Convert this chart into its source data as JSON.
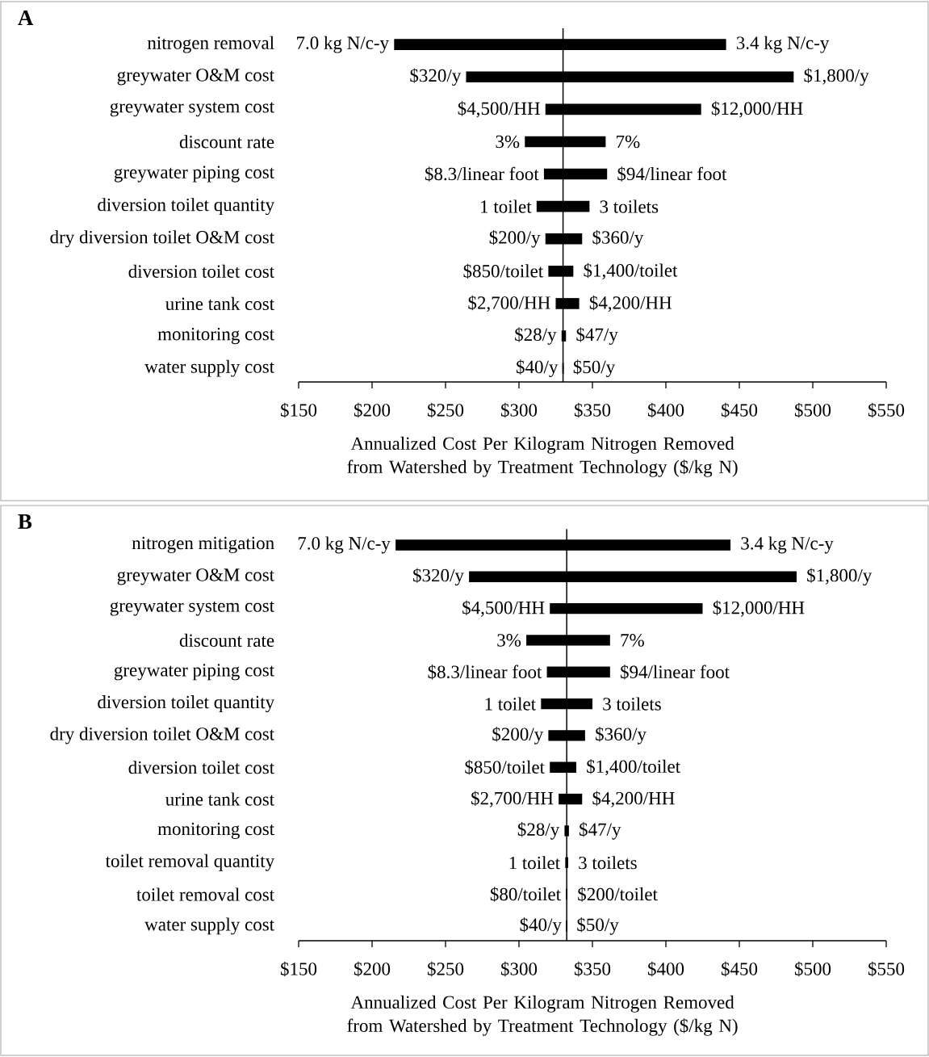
{
  "chart_data": [
    {
      "type": "bar",
      "orientation": "horizontal",
      "title": "A",
      "categories": [
        "nitrogen removal",
        "greywater O&M cost",
        "greywater system cost",
        "discount rate",
        "greywater piping cost",
        "diversion toilet quantity",
        "dry diversion toilet O&M cost",
        "diversion toilet cost",
        "urine tank cost",
        "monitoring cost",
        "water supply cost"
      ],
      "base": [
        215,
        264,
        318,
        304,
        317,
        312,
        318,
        320,
        325,
        329,
        329.5
      ],
      "values": [
        226,
        223,
        106,
        55,
        43,
        36,
        25,
        17,
        16,
        3,
        1
      ],
      "color": "#000000",
      "xlim": [
        150,
        550
      ],
      "xticks": [
        {
          "value": 150,
          "label": "$150"
        },
        {
          "value": 200,
          "label": "$200"
        },
        {
          "value": 250,
          "label": "$250"
        },
        {
          "value": 300,
          "label": "$300"
        },
        {
          "value": 350,
          "label": "$350"
        },
        {
          "value": 400,
          "label": "$400"
        },
        {
          "value": 450,
          "label": "$450"
        },
        {
          "value": 500,
          "label": "$500"
        },
        {
          "value": 550,
          "label": "$550"
        }
      ],
      "xlabel": "Annualized Cost Per Kilogram Nitrogen Removed from Watershed by Treatment Technology ($/kg N)",
      "ref_lines": [
        {
          "axis": "x",
          "value": 330,
          "color": "#000000"
        }
      ],
      "annotations": [
        {
          "text": "7.0 kg N/c-y",
          "x": 215,
          "y": "nitrogen removal"
        },
        {
          "text": "3.4 kg N/c-y",
          "x": 441,
          "y": "nitrogen removal"
        },
        {
          "text": "$320/y",
          "x": 264,
          "y": "greywater O&M cost"
        },
        {
          "text": "$1,800/y",
          "x": 487,
          "y": "greywater O&M cost"
        },
        {
          "text": "$4,500/HH",
          "x": 318,
          "y": "greywater system cost"
        },
        {
          "text": "$12,000/HH",
          "x": 424,
          "y": "greywater system cost"
        },
        {
          "text": "3%",
          "x": 304,
          "y": "discount rate"
        },
        {
          "text": "7%",
          "x": 359,
          "y": "discount rate"
        },
        {
          "text": "$8.3/linear foot",
          "x": 317,
          "y": "greywater piping cost"
        },
        {
          "text": "$94/linear foot",
          "x": 360,
          "y": "greywater piping cost"
        },
        {
          "text": "1 toilet",
          "x": 312,
          "y": "diversion toilet quantity"
        },
        {
          "text": "3 toilets",
          "x": 348,
          "y": "diversion toilet quantity"
        },
        {
          "text": "$200/y",
          "x": 318,
          "y": "dry diversion toilet O&M cost"
        },
        {
          "text": "$360/y",
          "x": 343,
          "y": "dry diversion toilet O&M cost"
        },
        {
          "text": "$850/toilet",
          "x": 320,
          "y": "diversion toilet cost"
        },
        {
          "text": "$1,400/toilet",
          "x": 337,
          "y": "diversion toilet cost"
        },
        {
          "text": "$2,700/HH",
          "x": 325,
          "y": "urine tank cost"
        },
        {
          "text": "$4,200/HH",
          "x": 341,
          "y": "urine tank cost"
        },
        {
          "text": "$28/y",
          "x": 329,
          "y": "monitoring cost"
        },
        {
          "text": "$47/y",
          "x": 332,
          "y": "monitoring cost"
        },
        {
          "text": "$40/y",
          "x": 330,
          "y": "water supply cost"
        },
        {
          "text": "$50/y",
          "x": 330,
          "y": "water supply cost"
        }
      ]
    },
    {
      "type": "bar",
      "orientation": "horizontal",
      "title": "B",
      "categories": [
        "nitrogen mitigation",
        "greywater O&M cost",
        "greywater system cost",
        "discount rate",
        "greywater piping cost",
        "diversion toilet quantity",
        "dry diversion toilet O&M cost",
        "diversion toilet cost",
        "urine tank cost",
        "monitoring cost",
        "toilet removal quantity",
        "toilet removal cost",
        "water supply cost"
      ],
      "base": [
        216,
        266,
        321,
        305,
        319,
        315,
        320,
        321,
        327,
        331,
        331.5,
        332,
        332
      ],
      "values": [
        228,
        223,
        104,
        57,
        43,
        35,
        25,
        18,
        16,
        3,
        2,
        1,
        1
      ],
      "color": "#000000",
      "xlim": [
        150,
        550
      ],
      "xticks": [
        {
          "value": 150,
          "label": "$150"
        },
        {
          "value": 200,
          "label": "$200"
        },
        {
          "value": 250,
          "label": "$250"
        },
        {
          "value": 300,
          "label": "$300"
        },
        {
          "value": 350,
          "label": "$350"
        },
        {
          "value": 400,
          "label": "$400"
        },
        {
          "value": 450,
          "label": "$450"
        },
        {
          "value": 500,
          "label": "$500"
        },
        {
          "value": 550,
          "label": "$550"
        }
      ],
      "xlabel": "Annualized Cost Per Kilogram Nitrogen Removed from Watershed by Treatment Technology ($/kg N)",
      "ref_lines": [
        {
          "axis": "x",
          "value": 332.5,
          "color": "#000000"
        }
      ],
      "annotations": [
        {
          "text": "7.0 kg N/c-y",
          "x": 216,
          "y": "nitrogen mitigation"
        },
        {
          "text": "3.4 kg N/c-y",
          "x": 444,
          "y": "nitrogen mitigation"
        },
        {
          "text": "$320/y",
          "x": 266,
          "y": "greywater O&M cost"
        },
        {
          "text": "$1,800/y",
          "x": 489,
          "y": "greywater O&M cost"
        },
        {
          "text": "$4,500/HH",
          "x": 321,
          "y": "greywater system cost"
        },
        {
          "text": "$12,000/HH",
          "x": 425,
          "y": "greywater system cost"
        },
        {
          "text": "3%",
          "x": 305,
          "y": "discount rate"
        },
        {
          "text": "7%",
          "x": 362,
          "y": "discount rate"
        },
        {
          "text": "$8.3/linear foot",
          "x": 319,
          "y": "greywater piping cost"
        },
        {
          "text": "$94/linear foot",
          "x": 362,
          "y": "greywater piping cost"
        },
        {
          "text": "1 toilet",
          "x": 315,
          "y": "diversion toilet quantity"
        },
        {
          "text": "3 toilets",
          "x": 350,
          "y": "diversion toilet quantity"
        },
        {
          "text": "$200/y",
          "x": 320,
          "y": "dry diversion toilet O&M cost"
        },
        {
          "text": "$360/y",
          "x": 345,
          "y": "dry diversion toilet O&M cost"
        },
        {
          "text": "$850/toilet",
          "x": 321,
          "y": "diversion toilet cost"
        },
        {
          "text": "$1,400/toilet",
          "x": 339,
          "y": "diversion toilet cost"
        },
        {
          "text": "$2,700/HH",
          "x": 327,
          "y": "urine tank cost"
        },
        {
          "text": "$4,200/HH",
          "x": 343,
          "y": "urine tank cost"
        },
        {
          "text": "$28/y",
          "x": 331,
          "y": "monitoring cost"
        },
        {
          "text": "$47/y",
          "x": 334,
          "y": "monitoring cost"
        },
        {
          "text": "1 toilet",
          "x": 331.5,
          "y": "toilet removal quantity"
        },
        {
          "text": "3 toilets",
          "x": 333.5,
          "y": "toilet removal quantity"
        },
        {
          "text": "$80/toilet",
          "x": 332,
          "y": "toilet removal cost"
        },
        {
          "text": "$200/toilet",
          "x": 333,
          "y": "toilet removal cost"
        },
        {
          "text": "$40/y",
          "x": 332.5,
          "y": "water supply cost"
        },
        {
          "text": "$50/y",
          "x": 332.5,
          "y": "water supply cost"
        }
      ]
    }
  ]
}
